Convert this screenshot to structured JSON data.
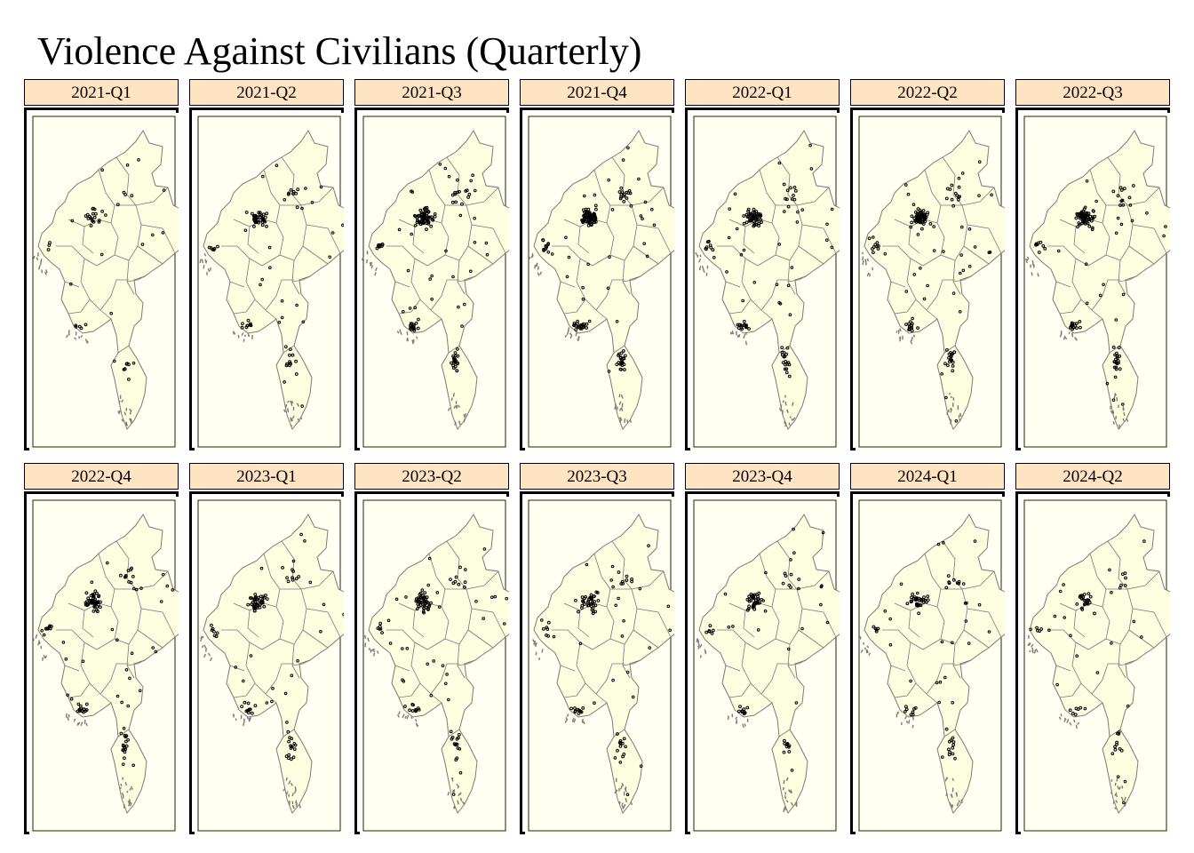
{
  "title": "Violence Against Civilians (Quarterly)",
  "colors": {
    "strip_bg": "#ffe4c4",
    "land": "#fdfde0",
    "panel_bg": "#fffff2",
    "boundary": "#7a7a7a",
    "points": "#000000"
  },
  "panels": [
    {
      "label": "2021-Q1",
      "intensity": 0.25
    },
    {
      "label": "2021-Q2",
      "intensity": 0.55
    },
    {
      "label": "2021-Q3",
      "intensity": 0.95
    },
    {
      "label": "2021-Q4",
      "intensity": 1.0
    },
    {
      "label": "2022-Q1",
      "intensity": 0.75
    },
    {
      "label": "2022-Q2",
      "intensity": 0.85
    },
    {
      "label": "2022-Q3",
      "intensity": 0.8
    },
    {
      "label": "2022-Q4",
      "intensity": 0.7
    },
    {
      "label": "2023-Q1",
      "intensity": 0.65
    },
    {
      "label": "2023-Q2",
      "intensity": 0.6
    },
    {
      "label": "2023-Q3",
      "intensity": 0.55
    },
    {
      "label": "2023-Q4",
      "intensity": 0.5
    },
    {
      "label": "2024-Q1",
      "intensity": 0.5
    },
    {
      "label": "2024-Q2",
      "intensity": 0.35
    }
  ]
}
